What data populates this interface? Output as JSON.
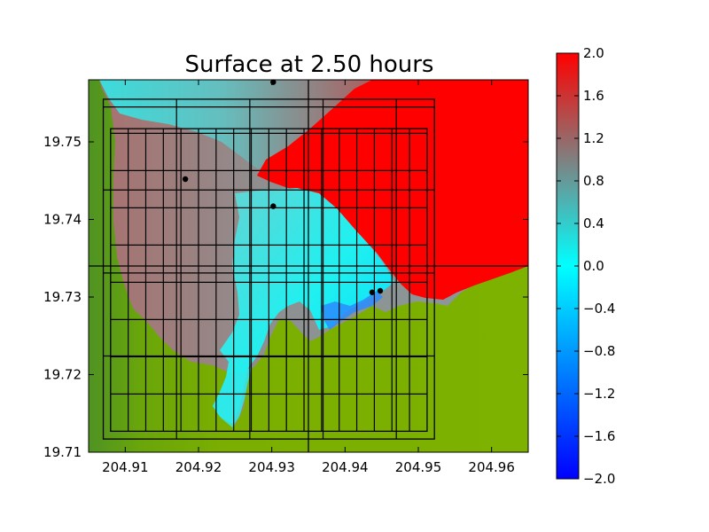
{
  "chart_data": {
    "type": "heatmap",
    "title": "Surface at 2.50 hours",
    "xlabel": "",
    "ylabel": "",
    "xlim": [
      204.905,
      204.965
    ],
    "ylim": [
      19.71,
      19.758
    ],
    "x_ticks": [
      204.91,
      204.92,
      204.93,
      204.94,
      204.95,
      204.96
    ],
    "y_ticks": [
      19.71,
      19.72,
      19.73,
      19.74,
      19.75
    ],
    "grid": false,
    "colorbar": {
      "range": [
        -2.0,
        2.0
      ],
      "ticks": [
        2.0,
        1.6,
        1.2,
        0.8,
        0.4,
        0.0,
        -0.4,
        -0.8,
        -1.2,
        -1.6,
        -2.0
      ],
      "tick_labels": [
        "2.0",
        "1.6",
        "1.2",
        "0.8",
        "0.4",
        "0.0",
        "−0.4",
        "−0.8",
        "−1.2",
        "−1.6",
        "−2.0"
      ],
      "placement": "right"
    },
    "colors": {
      "land": "#7aae00",
      "land_dark": "#4f9323",
      "high": "#ff0000",
      "mid": "#808080",
      "zero": "#00ffff",
      "low": "#0000ff"
    },
    "gauges": [
      {
        "x": 204.9302,
        "y": 19.7577
      },
      {
        "x": 204.9182,
        "y": 19.7452
      },
      {
        "x": 204.9302,
        "y": 19.7417
      },
      {
        "x": 204.9437,
        "y": 19.7306
      },
      {
        "x": 204.9448,
        "y": 19.7308
      }
    ],
    "grid_patches": [
      {
        "x": [
          204.907,
          204.9522
        ],
        "y": [
          19.7117,
          19.7555
        ],
        "dx": 0.01,
        "dy": 0.0107
      },
      {
        "x": [
          204.908,
          204.9512
        ],
        "y": [
          19.7127,
          19.7517
        ],
        "dx": 0.0024,
        "dy": 0.0048
      }
    ],
    "dividers": {
      "x": 204.935,
      "y": 19.734
    }
  }
}
